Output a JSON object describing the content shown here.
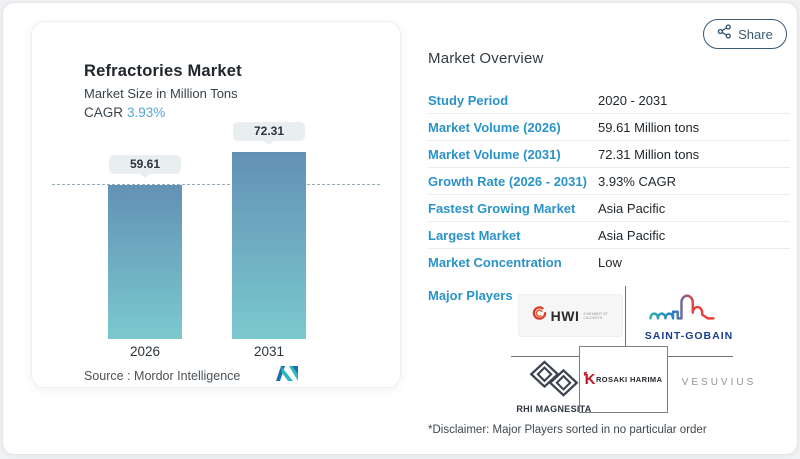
{
  "share": {
    "label": "Share"
  },
  "chart_card": {
    "title": "Refractories Market",
    "subtitle": "Market Size in Million Tons",
    "cagr_label": "CAGR",
    "cagr_value": "3.93%",
    "source_label": "Source :",
    "source_value": "Mordor Intelligence"
  },
  "chart_data": {
    "type": "bar",
    "title": "Refractories Market",
    "ylabel": "Market Size in Million Tons",
    "categories": [
      "2026",
      "2031"
    ],
    "values": [
      59.61,
      72.31
    ],
    "ylim": [
      0,
      72.31
    ],
    "grid": false,
    "dashed_reference_value": 59.61,
    "bar_gradient": [
      "#6391b5",
      "#7ac9ce"
    ],
    "dashed_line_color": "#97abb8",
    "cagr": "3.93%"
  },
  "overview": {
    "title": "Market Overview",
    "rows": [
      {
        "label": "Study Period",
        "value": "2020 - 2031"
      },
      {
        "label": "Market Volume (2026)",
        "value": "59.61 Million tons"
      },
      {
        "label": "Market Volume (2031)",
        "value": "72.31 Million tons"
      },
      {
        "label": "Growth Rate (2026 - 2031)",
        "value": "3.93% CAGR"
      },
      {
        "label": "Fastest Growing Market",
        "value": "Asia Pacific"
      },
      {
        "label": "Largest Market",
        "value": "Asia Pacific"
      },
      {
        "label": "Market Concentration",
        "value": "Low"
      }
    ],
    "major_players_label": "Major Players",
    "players": {
      "hwi": {
        "name": "HWI",
        "tagline": "A MEMBER OF CALDERYS"
      },
      "saint_gobain": {
        "name": "SAINT-GOBAIN"
      },
      "krosaki": {
        "k": "K",
        "rest": "ROSAKI HARIMA"
      },
      "rhi": {
        "name": "RHI MAGNESITA"
      },
      "vesuvius": {
        "name": "VESUVIUS"
      }
    }
  },
  "disclaimer": "*Disclaimer: Major Players sorted in no particular order",
  "colors": {
    "accent_blue": "#2a93c8",
    "cagr_blue": "#54a6d6",
    "share_navy": "#3a5a74",
    "bar_top": "#6391b5",
    "bar_bottom": "#7ac9ce",
    "saint_gobain_navy": "#1c3e8e",
    "krosaki_red": "#c41426",
    "rhi_slate": "#3d4450",
    "vesuvius_gray": "#8d939a"
  }
}
